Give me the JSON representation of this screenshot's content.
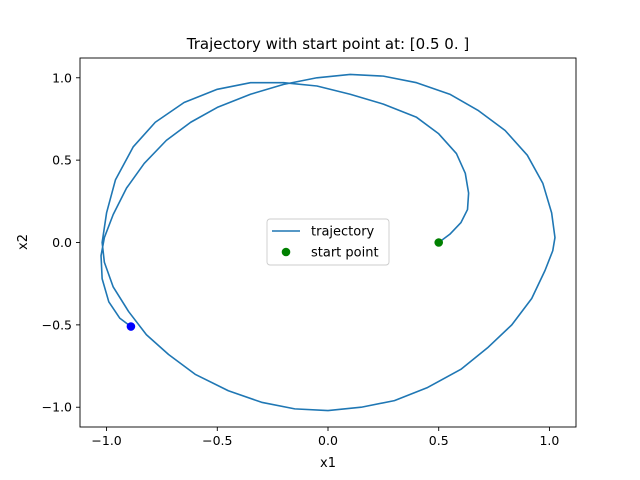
{
  "chart_data": {
    "type": "line",
    "title": "Trajectory with start point at: [0.5 0. ]",
    "xlabel": "x1",
    "ylabel": "x2",
    "xlim": [
      -1.12,
      1.12
    ],
    "ylim": [
      -1.12,
      1.12
    ],
    "xticks": [
      -1.0,
      -0.5,
      0.0,
      0.5,
      1.0
    ],
    "yticks": [
      -1.0,
      -0.5,
      0.0,
      0.5,
      1.0
    ],
    "xtick_labels": [
      "−1.0",
      "−0.5",
      "0.0",
      "0.5",
      "1.0"
    ],
    "ytick_labels": [
      "−1.0",
      "−0.5",
      "0.0",
      "0.5",
      "1.0"
    ],
    "grid": false,
    "legend_position": "center",
    "series": [
      {
        "name": "trajectory",
        "color": "#1f77b4",
        "x": [
          0.5,
          0.55,
          0.6,
          0.63,
          0.635,
          0.62,
          0.58,
          0.5,
          0.4,
          0.25,
          0.1,
          -0.05,
          -0.2,
          -0.35,
          -0.5,
          -0.65,
          -0.78,
          -0.88,
          -0.96,
          -1.0,
          -1.02,
          -1.01,
          -0.97,
          -0.9,
          -0.82,
          -0.72,
          -0.6,
          -0.45,
          -0.3,
          -0.15,
          0.0,
          0.15,
          0.3,
          0.45,
          0.6,
          0.72,
          0.83,
          0.92,
          0.98,
          1.015,
          1.025,
          1.01,
          0.97,
          0.9,
          0.8,
          0.68,
          0.55,
          0.4,
          0.25,
          0.1,
          -0.05,
          -0.2,
          -0.35,
          -0.5,
          -0.62,
          -0.73,
          -0.83,
          -0.91,
          -0.97,
          -1.01,
          -1.025,
          -1.02,
          -0.99,
          -0.94,
          -0.89
        ],
        "y": [
          0.0,
          0.05,
          0.12,
          0.2,
          0.3,
          0.42,
          0.54,
          0.66,
          0.76,
          0.84,
          0.9,
          0.95,
          0.97,
          0.97,
          0.93,
          0.85,
          0.73,
          0.58,
          0.38,
          0.18,
          0.0,
          -0.12,
          -0.27,
          -0.42,
          -0.56,
          -0.68,
          -0.8,
          -0.9,
          -0.97,
          -1.01,
          -1.02,
          -1.0,
          -0.96,
          -0.88,
          -0.77,
          -0.64,
          -0.5,
          -0.34,
          -0.17,
          -0.05,
          0.03,
          0.18,
          0.36,
          0.53,
          0.68,
          0.8,
          0.9,
          0.97,
          1.01,
          1.02,
          1.0,
          0.96,
          0.9,
          0.82,
          0.73,
          0.62,
          0.48,
          0.33,
          0.17,
          0.03,
          -0.08,
          -0.22,
          -0.36,
          -0.46,
          -0.51
        ]
      }
    ],
    "markers": [
      {
        "name": "start point",
        "x": 0.5,
        "y": 0.0,
        "color": "#008000",
        "in_legend": true
      },
      {
        "name": "",
        "x": -0.89,
        "y": -0.51,
        "color": "#0000ff",
        "in_legend": false
      }
    ],
    "legend": {
      "entries": [
        "trajectory",
        "start point"
      ]
    }
  }
}
